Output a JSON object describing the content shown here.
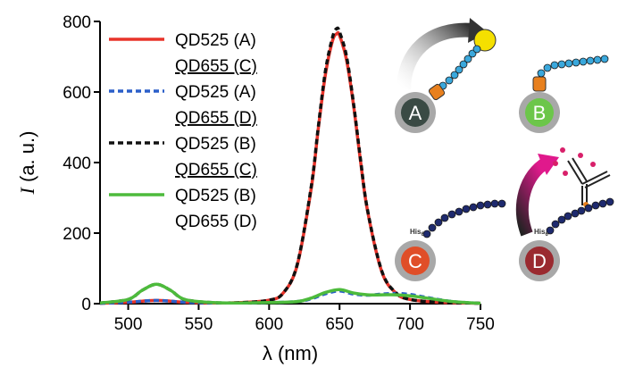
{
  "chart_data": {
    "type": "line",
    "xlabel": "λ (nm)",
    "ylabel_italic": "I",
    "ylabel_rest": " (a. u.)",
    "xlim": [
      480,
      750
    ],
    "ylim": [
      0,
      800
    ],
    "xticks": [
      500,
      550,
      600,
      650,
      700,
      750
    ],
    "yticks": [
      0,
      200,
      400,
      600,
      800
    ],
    "grid": false,
    "legend_position": "top-left",
    "legend": [
      {
        "series": 0,
        "line1": "QD525 (A)",
        "line2": "QD655 (C)"
      },
      {
        "series": 1,
        "line1": "QD525 (A)",
        "line2": "QD655 (D)"
      },
      {
        "series": 2,
        "line1": "QD525 (B)",
        "line2": "QD655 (C)"
      },
      {
        "series": 3,
        "line1": "QD525 (B)",
        "line2": "QD655 (D)"
      }
    ],
    "series": [
      {
        "color": "#e8332a",
        "dash": "solid",
        "x": [
          480,
          500,
          510,
          520,
          530,
          540,
          560,
          580,
          600,
          610,
          620,
          630,
          635,
          640,
          645,
          648,
          650,
          655,
          660,
          665,
          670,
          680,
          690,
          700,
          720,
          740,
          750
        ],
        "y": [
          1,
          4,
          7,
          9,
          7,
          4,
          2,
          3,
          10,
          30,
          110,
          330,
          500,
          650,
          745,
          765,
          760,
          690,
          560,
          400,
          260,
          90,
          30,
          12,
          4,
          2,
          1
        ]
      },
      {
        "color": "#2b5fc9",
        "dash": "dashed",
        "x": [
          480,
          500,
          510,
          520,
          530,
          540,
          560,
          580,
          600,
          620,
          630,
          640,
          650,
          660,
          670,
          680,
          690,
          700,
          710,
          720,
          730,
          740,
          750
        ],
        "y": [
          1,
          4,
          7,
          9,
          7,
          4,
          2,
          2,
          3,
          6,
          14,
          28,
          36,
          27,
          24,
          27,
          29,
          26,
          19,
          12,
          6,
          3,
          1
        ]
      },
      {
        "color": "#111111",
        "dash": "dashed",
        "x": [
          480,
          500,
          510,
          520,
          530,
          540,
          560,
          580,
          600,
          610,
          620,
          630,
          635,
          640,
          645,
          648,
          650,
          655,
          660,
          665,
          670,
          680,
          690,
          700,
          720,
          740,
          750
        ],
        "y": [
          2,
          12,
          38,
          55,
          38,
          12,
          3,
          3,
          10,
          30,
          112,
          335,
          505,
          660,
          755,
          780,
          770,
          700,
          565,
          405,
          262,
          92,
          31,
          12,
          4,
          2,
          1
        ]
      },
      {
        "color": "#4dbb3c",
        "dash": "solid",
        "x": [
          480,
          500,
          510,
          520,
          530,
          540,
          560,
          580,
          600,
          620,
          630,
          640,
          650,
          660,
          670,
          680,
          690,
          700,
          710,
          720,
          730,
          740,
          750
        ],
        "y": [
          2,
          12,
          38,
          55,
          38,
          12,
          3,
          2,
          3,
          6,
          16,
          32,
          40,
          30,
          25,
          25,
          25,
          22,
          17,
          11,
          6,
          3,
          1
        ]
      }
    ]
  },
  "schematics": {
    "labels": [
      "A",
      "B",
      "C",
      "D"
    ],
    "his_tag": "His",
    "his_subscript": "6",
    "colors": {
      "qd_ring": "#a8a8a8",
      "qd_a": "#3a4a44",
      "qd_b": "#6cc64a",
      "qd_c": "#e04e28",
      "qd_d": "#9a2a30",
      "linker": "#e8801e",
      "chain_light": "#3aa8dc",
      "chain_dark": "#1e2a6e",
      "ligand": "#f5e000",
      "arrow_dark": "#333333",
      "arrow_pink": "#e0198c",
      "dye_pink": "#d8206a"
    }
  }
}
